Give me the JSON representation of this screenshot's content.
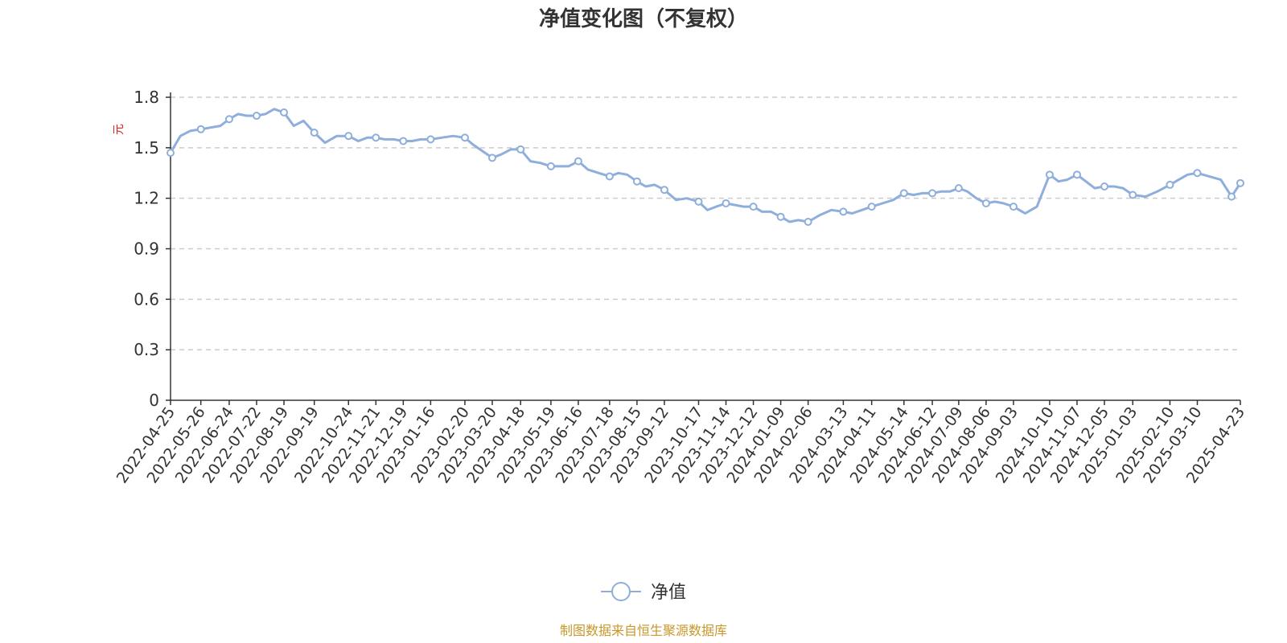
{
  "chart_data": {
    "type": "line",
    "title": "净值变化图（不复权）",
    "ylabel": "元",
    "xlabel": "",
    "ylim": [
      0,
      1.8
    ],
    "y_ticks": [
      "0",
      "0.3",
      "0.6",
      "0.9",
      "1.2",
      "1.5",
      "1.8"
    ],
    "grid": true,
    "legend_position": "bottom-center",
    "x_tick_labels": [
      "2022-04-25",
      "2022-05-26",
      "2022-06-24",
      "2022-07-22",
      "2022-08-19",
      "2022-09-19",
      "2022-10-24",
      "2022-11-21",
      "2022-12-19",
      "2023-01-16",
      "2023-02-20",
      "2023-03-20",
      "2023-04-18",
      "2023-05-19",
      "2023-06-16",
      "2023-07-18",
      "2023-08-15",
      "2023-09-12",
      "2023-10-17",
      "2023-11-14",
      "2023-12-12",
      "2024-01-09",
      "2024-02-06",
      "2024-03-13",
      "2024-04-11",
      "2024-05-14",
      "2024-06-12",
      "2024-07-09",
      "2024-08-06",
      "2024-09-03",
      "2024-10-10",
      "2024-11-07",
      "2024-12-05",
      "2025-01-03",
      "2025-02-10",
      "2025-03-10",
      "2025-04-23"
    ],
    "series": [
      {
        "name": "净值",
        "color": "#8eaedc",
        "x": [
          "2022-04-25",
          "2022-05-05",
          "2022-05-15",
          "2022-05-26",
          "2022-06-05",
          "2022-06-15",
          "2022-06-24",
          "2022-07-03",
          "2022-07-12",
          "2022-07-22",
          "2022-07-31",
          "2022-08-09",
          "2022-08-19",
          "2022-08-29",
          "2022-09-08",
          "2022-09-19",
          "2022-09-30",
          "2022-10-12",
          "2022-10-24",
          "2022-11-03",
          "2022-11-12",
          "2022-11-21",
          "2022-11-30",
          "2022-12-09",
          "2022-12-19",
          "2022-12-28",
          "2023-01-06",
          "2023-01-16",
          "2023-01-27",
          "2023-02-08",
          "2023-02-20",
          "2023-02-28",
          "2023-03-10",
          "2023-03-20",
          "2023-03-29",
          "2023-04-08",
          "2023-04-18",
          "2023-04-28",
          "2023-05-08",
          "2023-05-19",
          "2023-05-28",
          "2023-06-06",
          "2023-06-16",
          "2023-06-26",
          "2023-07-07",
          "2023-07-18",
          "2023-07-27",
          "2023-08-05",
          "2023-08-15",
          "2023-08-24",
          "2023-09-02",
          "2023-09-12",
          "2023-09-24",
          "2023-10-05",
          "2023-10-17",
          "2023-10-26",
          "2023-11-04",
          "2023-11-14",
          "2023-11-23",
          "2023-12-02",
          "2023-12-12",
          "2023-12-21",
          "2023-12-30",
          "2024-01-09",
          "2024-01-18",
          "2024-01-27",
          "2024-02-06",
          "2024-02-18",
          "2024-03-01",
          "2024-03-13",
          "2024-03-22",
          "2024-04-01",
          "2024-04-11",
          "2024-04-22",
          "2024-05-03",
          "2024-05-14",
          "2024-05-24",
          "2024-06-02",
          "2024-06-12",
          "2024-06-21",
          "2024-06-30",
          "2024-07-09",
          "2024-07-18",
          "2024-07-27",
          "2024-08-06",
          "2024-08-15",
          "2024-08-24",
          "2024-09-03",
          "2024-09-15",
          "2024-09-27",
          "2024-10-10",
          "2024-10-19",
          "2024-10-28",
          "2024-11-07",
          "2024-11-16",
          "2024-11-25",
          "2024-12-05",
          "2024-12-15",
          "2024-12-24",
          "2025-01-03",
          "2025-01-16",
          "2025-01-28",
          "2025-02-10",
          "2025-02-19",
          "2025-02-28",
          "2025-03-10",
          "2025-03-22",
          "2025-04-03",
          "2025-04-14",
          "2025-04-23"
        ],
        "values": [
          1.47,
          1.57,
          1.6,
          1.61,
          1.62,
          1.63,
          1.67,
          1.7,
          1.69,
          1.69,
          1.7,
          1.73,
          1.71,
          1.63,
          1.66,
          1.59,
          1.53,
          1.57,
          1.57,
          1.54,
          1.56,
          1.56,
          1.55,
          1.55,
          1.54,
          1.54,
          1.55,
          1.55,
          1.56,
          1.57,
          1.56,
          1.52,
          1.48,
          1.44,
          1.46,
          1.49,
          1.49,
          1.42,
          1.41,
          1.39,
          1.39,
          1.39,
          1.42,
          1.37,
          1.35,
          1.33,
          1.35,
          1.34,
          1.3,
          1.27,
          1.28,
          1.25,
          1.19,
          1.2,
          1.18,
          1.13,
          1.15,
          1.17,
          1.16,
          1.15,
          1.15,
          1.12,
          1.12,
          1.09,
          1.06,
          1.07,
          1.06,
          1.1,
          1.13,
          1.12,
          1.11,
          1.13,
          1.15,
          1.17,
          1.19,
          1.23,
          1.22,
          1.23,
          1.23,
          1.24,
          1.24,
          1.26,
          1.24,
          1.2,
          1.17,
          1.18,
          1.17,
          1.15,
          1.11,
          1.15,
          1.34,
          1.3,
          1.31,
          1.34,
          1.3,
          1.26,
          1.27,
          1.27,
          1.26,
          1.22,
          1.21,
          1.24,
          1.28,
          1.31,
          1.34,
          1.35,
          1.33,
          1.31,
          1.21,
          1.29
        ]
      }
    ],
    "marker_indices": [
      0,
      3,
      6,
      9,
      12,
      15,
      18,
      21,
      24,
      27,
      30,
      33,
      36,
      39,
      42,
      45,
      48,
      51,
      54,
      57,
      60,
      63,
      66,
      69,
      72,
      75,
      78,
      81,
      84,
      87,
      90,
      93,
      96,
      99,
      102,
      105,
      108,
      109
    ]
  },
  "footer": {
    "source_text": "制图数据来自恒生聚源数据库",
    "source_color": "#c9972a"
  },
  "colors": {
    "grid": "#cccccc",
    "axis": "#333333",
    "unit": "#e02020"
  }
}
